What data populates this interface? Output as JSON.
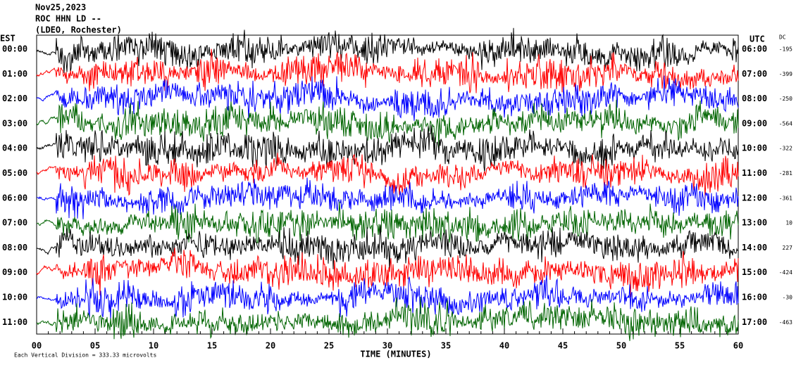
{
  "header": {
    "lines": [
      "Nov25,2023",
      "ROC HHN LD --",
      "(LDEO, Rochester)"
    ]
  },
  "left_label": "EST",
  "right_label": "UTC",
  "dc_label": "DC",
  "rows": [
    {
      "est": "00:00",
      "utc": "06:00",
      "dc": -195,
      "color": "#000000"
    },
    {
      "est": "01:00",
      "utc": "07:00",
      "dc": -399,
      "color": "#ff0000"
    },
    {
      "est": "02:00",
      "utc": "08:00",
      "dc": -250,
      "color": "#0000ff"
    },
    {
      "est": "03:00",
      "utc": "09:00",
      "dc": -564,
      "color": "#006400"
    },
    {
      "est": "04:00",
      "utc": "10:00",
      "dc": -322,
      "color": "#000000"
    },
    {
      "est": "05:00",
      "utc": "11:00",
      "dc": -281,
      "color": "#ff0000"
    },
    {
      "est": "06:00",
      "utc": "12:00",
      "dc": -361,
      "color": "#0000ff"
    },
    {
      "est": "07:00",
      "utc": "13:00",
      "dc": 10,
      "color": "#006400"
    },
    {
      "est": "08:00",
      "utc": "14:00",
      "dc": 227,
      "color": "#000000"
    },
    {
      "est": "09:00",
      "utc": "15:00",
      "dc": -424,
      "color": "#ff0000"
    },
    {
      "est": "10:00",
      "utc": "16:00",
      "dc": -30,
      "color": "#0000ff"
    },
    {
      "est": "11:00",
      "utc": "17:00",
      "dc": -463,
      "color": "#006400"
    }
  ],
  "x_axis": {
    "label": "TIME (MINUTES)",
    "lim": [
      0,
      60
    ],
    "ticks": [
      {
        "value": 0,
        "label": "00"
      },
      {
        "value": 5,
        "label": "05"
      },
      10,
      15,
      20,
      25,
      30,
      35,
      40,
      45,
      50,
      55,
      60
    ]
  },
  "footer": "Each Vertical Division = 333.33 microvolts"
}
